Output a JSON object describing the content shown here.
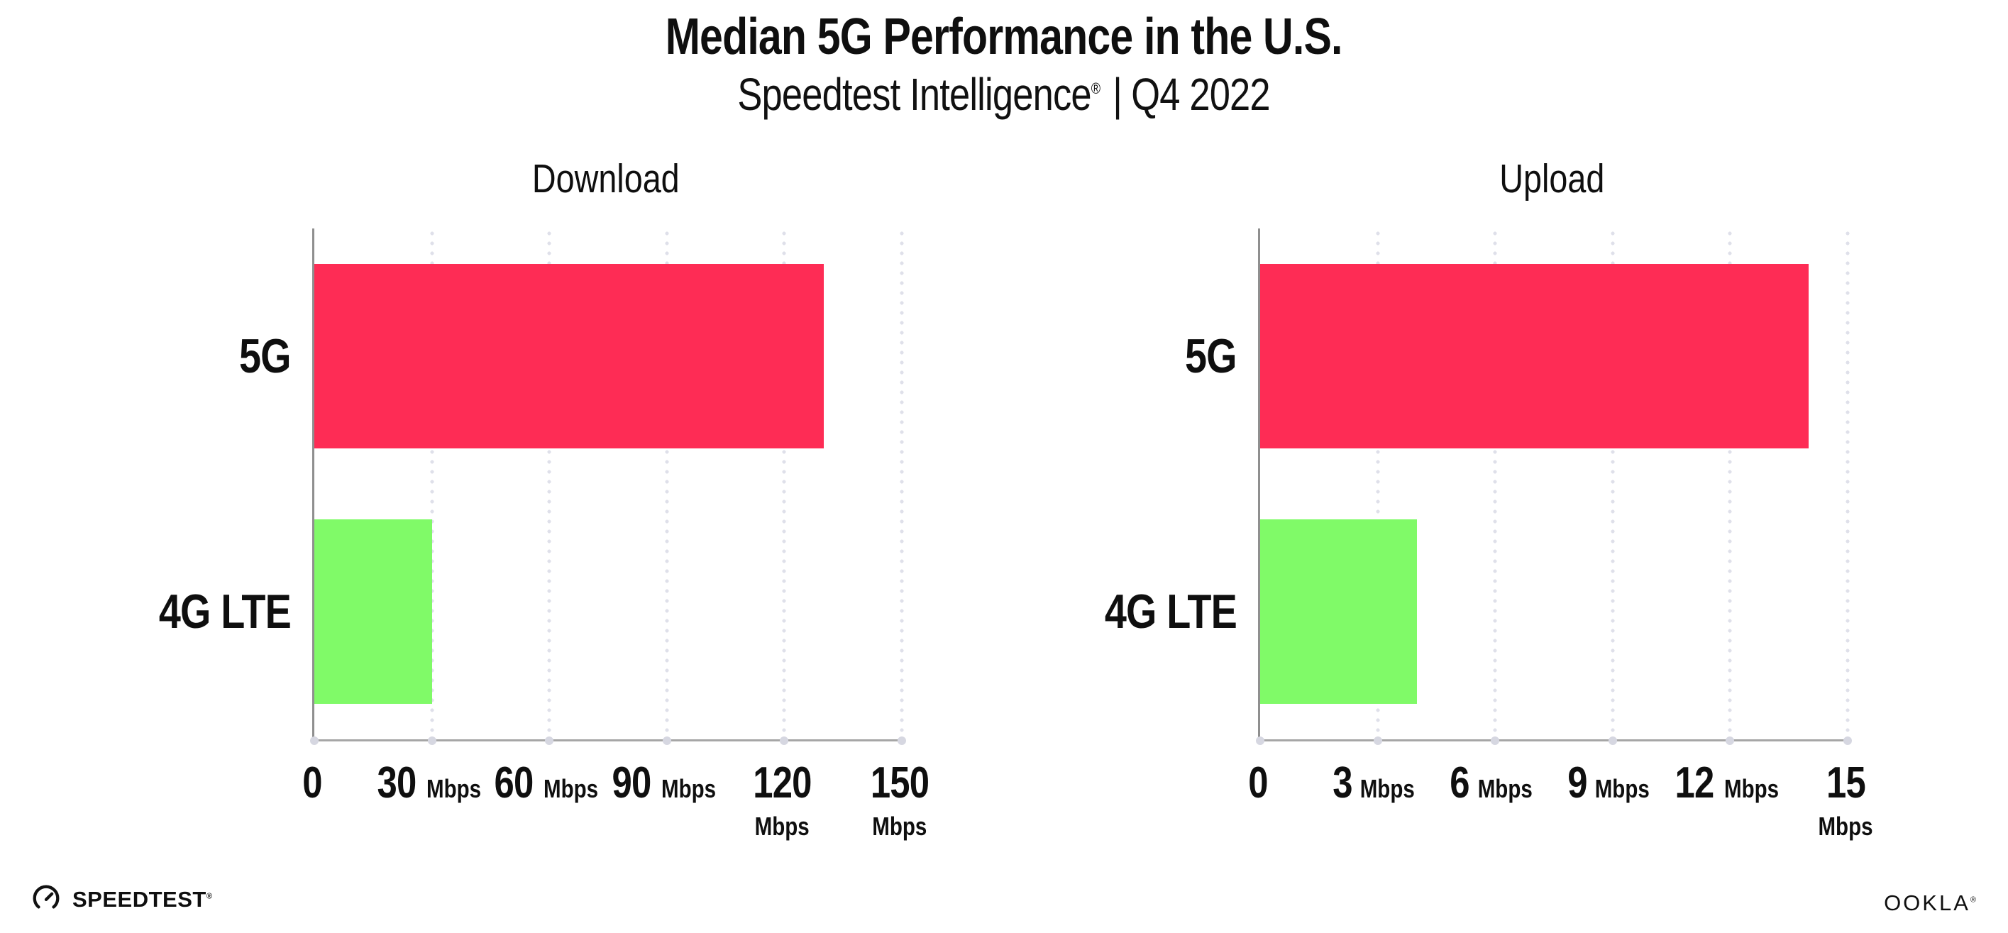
{
  "header": {
    "title": "Median 5G Performance in the U.S.",
    "subtitle_brand": "Speedtest Intelligence",
    "subtitle_reg": "®",
    "subtitle_divider": "|",
    "subtitle_period": "Q4 2022"
  },
  "colors": {
    "bar_5g": "#fe2c55",
    "bar_4g_lte": "#80fa68",
    "y_axis_line": "#8f8f8f",
    "x_axis_line": "#a6a6a6",
    "gridline_dots": "#dfe0ea",
    "tick_dots": "#d6d7e1",
    "text": "#0f0f0f",
    "background": "#ffffff"
  },
  "chart_data": [
    {
      "type": "bar",
      "orientation": "horizontal",
      "title": "Download",
      "categories": [
        "5G",
        "4G LTE"
      ],
      "values": [
        130,
        30
      ],
      "unit": "Mbps",
      "xlim": [
        0,
        150
      ],
      "xticks": [
        0,
        30,
        60,
        90,
        120,
        150
      ],
      "xtick_unit_label": "Mbps",
      "bar_colors": [
        "#fe2c55",
        "#80fa68"
      ],
      "grid": "dotted-vertical",
      "legend": "none"
    },
    {
      "type": "bar",
      "orientation": "horizontal",
      "title": "Upload",
      "categories": [
        "5G",
        "4G LTE"
      ],
      "values": [
        14,
        4
      ],
      "unit": "Mbps",
      "xlim": [
        0,
        15
      ],
      "xticks": [
        0,
        3,
        6,
        9,
        12,
        15
      ],
      "xtick_unit_label": "Mbps",
      "bar_colors": [
        "#fe2c55",
        "#80fa68"
      ],
      "grid": "dotted-vertical",
      "legend": "none"
    }
  ],
  "footer": {
    "speedtest_label": "SPEEDTEST",
    "speedtest_reg": "®",
    "ookla_label": "OOKLA",
    "ookla_reg": "®"
  }
}
